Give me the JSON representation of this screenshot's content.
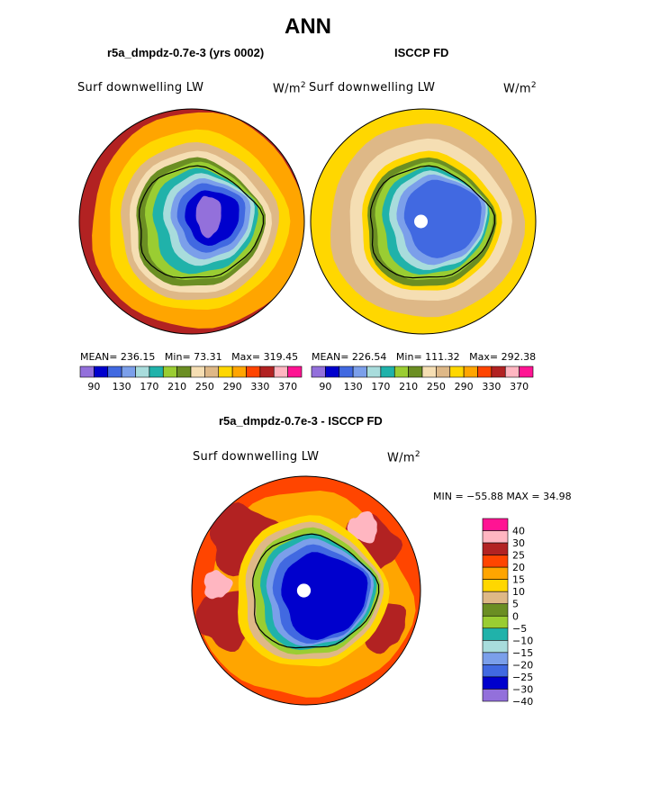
{
  "page_title": "ANN",
  "panels": [
    {
      "subtitle": "r5a_dmpdz-0.7e-3 (yrs 0002)",
      "variable": "Surf downwelling LW",
      "units": "W/m",
      "units_exp": "2",
      "stats": {
        "mean_label": "MEAN=",
        "mean": "236.15",
        "min_label": "Min=",
        "min": "73.31",
        "max_label": "Max=",
        "max": "319.45"
      },
      "pole_hole": false
    },
    {
      "subtitle": "ISCCP FD",
      "variable": "Surf downwelling LW",
      "units": "W/m",
      "units_exp": "2",
      "stats": {
        "mean_label": "MEAN=",
        "mean": "226.54",
        "min_label": "Min=",
        "min": "111.32",
        "max_label": "Max=",
        "max": "292.38"
      },
      "pole_hole": true
    }
  ],
  "diff_panel": {
    "subtitle": "r5a_dmpdz-0.7e-3 - ISCCP FD",
    "variable": "Surf downwelling LW",
    "units": "W/m",
    "units_exp": "2",
    "minmax_text": "MIN = −55.88 MAX =  34.98"
  },
  "chart_data": [
    {
      "type": "heatmap",
      "projection": "south-polar-stereographic",
      "title": "r5a_dmpdz-0.7e-3 (yrs 0002)",
      "field": "Surf downwelling LW",
      "units": "W/m2",
      "mean": 236.15,
      "min": 73.31,
      "max": 319.45,
      "contour_levels": [
        90,
        110,
        130,
        150,
        170,
        190,
        210,
        230,
        250,
        270,
        290,
        310,
        330,
        350,
        370
      ],
      "colorbar_labels": [
        "90",
        "130",
        "170",
        "210",
        "250",
        "290",
        "330",
        "370"
      ],
      "colors": [
        "#9370db",
        "#0000cd",
        "#4169e1",
        "#7b9fea",
        "#a8dcdc",
        "#20b2aa",
        "#9acd32",
        "#6b8e23",
        "#f5deb3",
        "#deb887",
        "#ffd700",
        "#ffa500",
        "#ff4500",
        "#b22222",
        "#ffb6c1",
        "#ff1493"
      ]
    },
    {
      "type": "heatmap",
      "projection": "south-polar-stereographic",
      "title": "ISCCP FD",
      "field": "Surf downwelling LW",
      "units": "W/m2",
      "mean": 226.54,
      "min": 111.32,
      "max": 292.38,
      "contour_levels": [
        90,
        110,
        130,
        150,
        170,
        190,
        210,
        230,
        250,
        270,
        290,
        310,
        330,
        350,
        370
      ],
      "colorbar_labels": [
        "90",
        "130",
        "170",
        "210",
        "250",
        "290",
        "330",
        "370"
      ],
      "colors": [
        "#9370db",
        "#0000cd",
        "#4169e1",
        "#7b9fea",
        "#a8dcdc",
        "#20b2aa",
        "#9acd32",
        "#6b8e23",
        "#f5deb3",
        "#deb887",
        "#ffd700",
        "#ffa500",
        "#ff4500",
        "#b22222",
        "#ffb6c1",
        "#ff1493"
      ]
    },
    {
      "type": "heatmap",
      "projection": "south-polar-stereographic",
      "title": "r5a_dmpdz-0.7e-3 - ISCCP FD",
      "field": "Surf downwelling LW",
      "units": "W/m2",
      "min": -55.88,
      "max": 34.98,
      "contour_levels": [
        -40,
        -30,
        -25,
        -20,
        -15,
        -10,
        -5,
        0,
        5,
        10,
        15,
        20,
        25,
        30,
        40
      ],
      "colorbar_labels": [
        "40",
        "30",
        "25",
        "20",
        "15",
        "10",
        "5",
        "0",
        "−5",
        "−10",
        "−15",
        "−20",
        "−25",
        "−30",
        "−40"
      ],
      "colors": [
        "#ff1493",
        "#ffb6c1",
        "#b22222",
        "#ff4500",
        "#ffa500",
        "#ffd700",
        "#deb887",
        "#6b8e23",
        "#9acd32",
        "#20b2aa",
        "#a8dcdc",
        "#7b9fea",
        "#4169e1",
        "#0000cd",
        "#9370db"
      ]
    }
  ]
}
